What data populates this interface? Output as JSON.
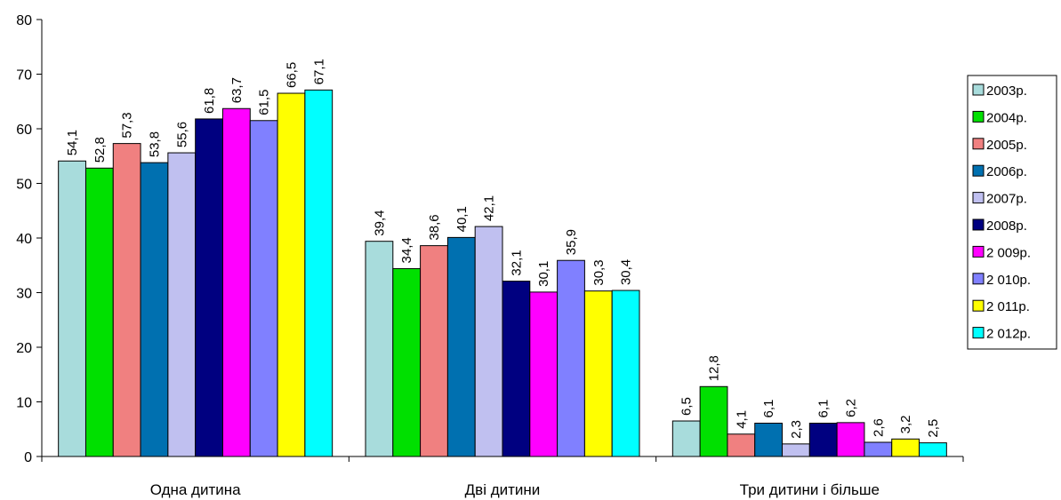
{
  "chart_data": {
    "type": "bar",
    "title": "",
    "xlabel": "",
    "ylabel": "",
    "ylim": [
      0,
      80
    ],
    "yticks": [
      "0",
      "10",
      "20",
      "30",
      "40",
      "50",
      "60",
      "70",
      "80"
    ],
    "grid": false,
    "legend_position": "right",
    "categories": [
      "Одна дитина",
      "Дві дитини",
      "Три дитини і більше"
    ],
    "series": [
      {
        "name": "2003р.",
        "color": "#a8dcdc",
        "values": [
          54.1,
          39.4,
          6.5
        ],
        "labels": [
          "54,1",
          "39,4",
          "6,5"
        ]
      },
      {
        "name": "2004р.",
        "color": "#00e000",
        "values": [
          52.8,
          34.4,
          12.8
        ],
        "labels": [
          "52,8",
          "34,4",
          "12,8"
        ]
      },
      {
        "name": "2005р.",
        "color": "#f08080",
        "values": [
          57.3,
          38.6,
          4.1
        ],
        "labels": [
          "57,3",
          "38,6",
          "4,1"
        ]
      },
      {
        "name": "2006р.",
        "color": "#0070b0",
        "values": [
          53.8,
          40.1,
          6.1
        ],
        "labels": [
          "53,8",
          "40,1",
          "6,1"
        ]
      },
      {
        "name": "2007р.",
        "color": "#c0c0f0",
        "values": [
          55.6,
          42.1,
          2.3
        ],
        "labels": [
          "55,6",
          "42,1",
          "2,3"
        ]
      },
      {
        "name": "2008р.",
        "color": "#000080",
        "values": [
          61.8,
          32.1,
          6.1
        ],
        "labels": [
          "61,8",
          "32,1",
          "6,1"
        ]
      },
      {
        "name": "2 009р.",
        "color": "#ff00ff",
        "values": [
          63.7,
          30.1,
          6.2
        ],
        "labels": [
          "63,7",
          "30,1",
          "6,2"
        ]
      },
      {
        "name": "2 010р.",
        "color": "#8080ff",
        "values": [
          61.5,
          35.9,
          2.6
        ],
        "labels": [
          "61,5",
          "35,9",
          "2,6"
        ]
      },
      {
        "name": "2 011р.",
        "color": "#ffff00",
        "values": [
          66.5,
          30.3,
          3.2
        ],
        "labels": [
          "66,5",
          "30,3",
          "3,2"
        ]
      },
      {
        "name": "2 012р.",
        "color": "#00ffff",
        "values": [
          67.1,
          30.4,
          2.5
        ],
        "labels": [
          "67,1",
          "30,4",
          "2,5"
        ]
      }
    ]
  }
}
